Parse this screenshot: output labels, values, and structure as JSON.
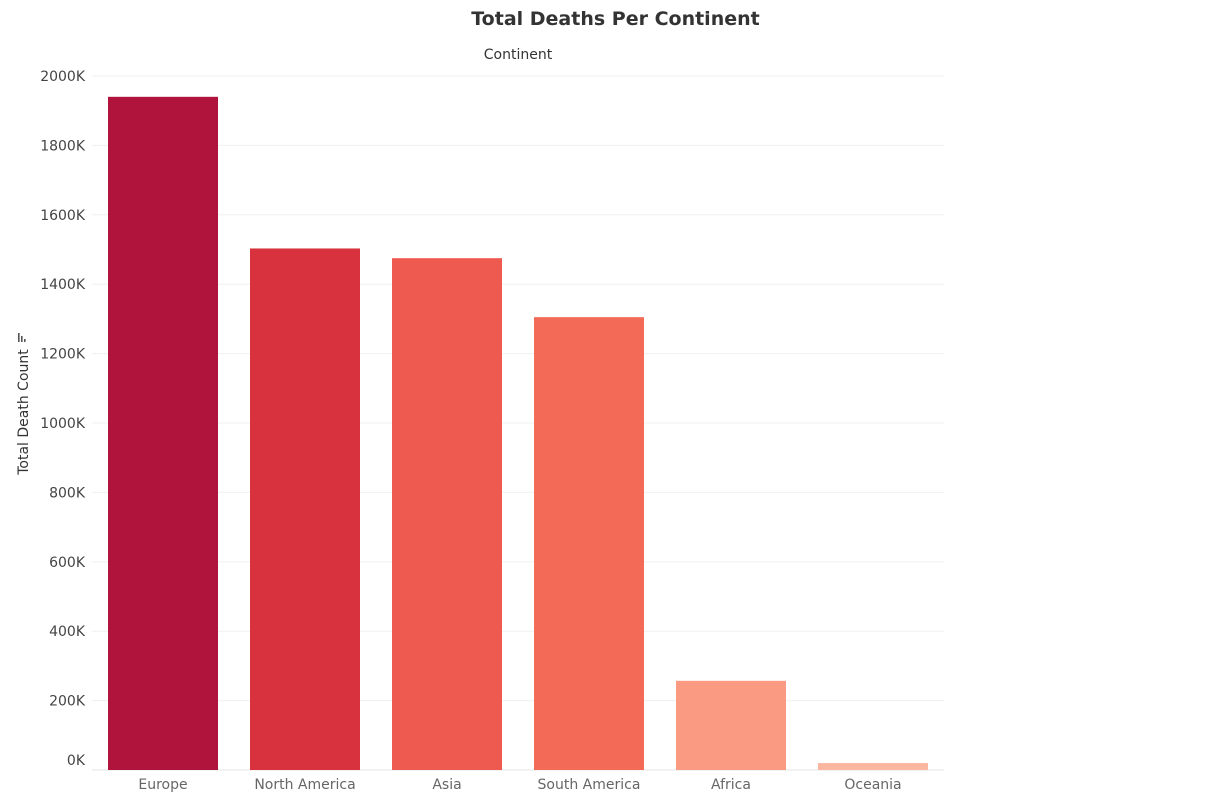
{
  "chart_data": {
    "type": "bar",
    "title": "Total Deaths Per Continent",
    "column_header": "Continent",
    "ylabel": "Total Death Count",
    "xlabel": "",
    "categories": [
      "Europe",
      "North America",
      "Asia",
      "South America",
      "Africa",
      "Oceania"
    ],
    "values": [
      1940000,
      1503000,
      1475000,
      1305000,
      257000,
      20000
    ],
    "colors": [
      "#b0133b",
      "#d9323f",
      "#ee5a4f",
      "#f36b57",
      "#fa9a82",
      "#fbb6a0"
    ],
    "ylim": [
      0,
      2000000
    ],
    "yticks": [
      0,
      200000,
      400000,
      600000,
      800000,
      1000000,
      1200000,
      1400000,
      1600000,
      1800000,
      2000000
    ],
    "ytick_labels": [
      "0K",
      "200K",
      "400K",
      "600K",
      "800K",
      "1000K",
      "1200K",
      "1400K",
      "1600K",
      "1800K",
      "2000K"
    ],
    "grid": true,
    "sort_icon": "sort-descending-icon"
  }
}
